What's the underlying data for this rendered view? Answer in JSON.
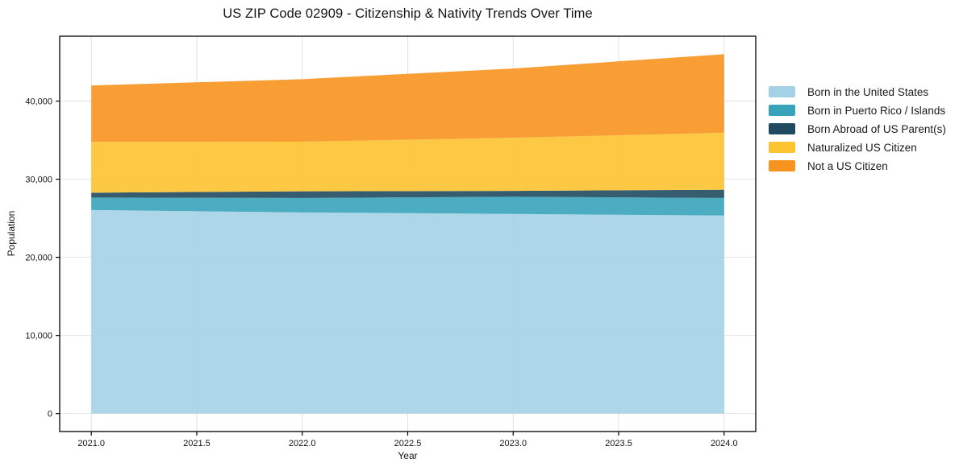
{
  "title": "US ZIP Code 02909 - Citizenship & Nativity Trends Over Time",
  "chart_data": {
    "type": "area",
    "stacked": true,
    "title": "US ZIP Code 02909 - Citizenship & Nativity Trends Over Time",
    "xlabel": "Year",
    "ylabel": "Population",
    "grid": true,
    "legend_position": "right-outside",
    "x": [
      2021,
      2022,
      2023,
      2024
    ],
    "xlim": [
      2020.85,
      2024.15
    ],
    "ylim": [
      -2300,
      48300
    ],
    "x_ticks": [
      2021.0,
      2021.5,
      2022.0,
      2022.5,
      2023.0,
      2023.5,
      2024.0
    ],
    "x_tick_labels": [
      "2021.0",
      "2021.5",
      "2022.0",
      "2022.5",
      "2023.0",
      "2023.5",
      "2024.0"
    ],
    "y_ticks": [
      0,
      10000,
      20000,
      30000,
      40000
    ],
    "y_tick_labels": [
      "0",
      "10,000",
      "20,000",
      "30,000",
      "40,000"
    ],
    "series": [
      {
        "name": "Born in the United States",
        "color": "#a4d1e6",
        "values": [
          26050,
          25750,
          25550,
          25350
        ]
      },
      {
        "name": "Born in Puerto Rico / Islands",
        "color": "#38a3ba",
        "values": [
          1600,
          1850,
          2200,
          2250
        ]
      },
      {
        "name": "Born Abroad of US Parent(s)",
        "color": "#1f4a5f",
        "values": [
          620,
          850,
          750,
          1050
        ]
      },
      {
        "name": "Naturalized US Citizen",
        "color": "#fdc330",
        "values": [
          6500,
          6350,
          6800,
          7300
        ]
      },
      {
        "name": "Not a US Citizen",
        "color": "#f7941f",
        "values": [
          7230,
          8000,
          8870,
          10050
        ]
      }
    ],
    "totals": [
      42000,
      42800,
      44170,
      46000
    ],
    "style": {
      "grid_color": "#e3e3e3",
      "frame_color": "#000000",
      "background": "#ffffff",
      "area_opacity": 0.9
    }
  }
}
